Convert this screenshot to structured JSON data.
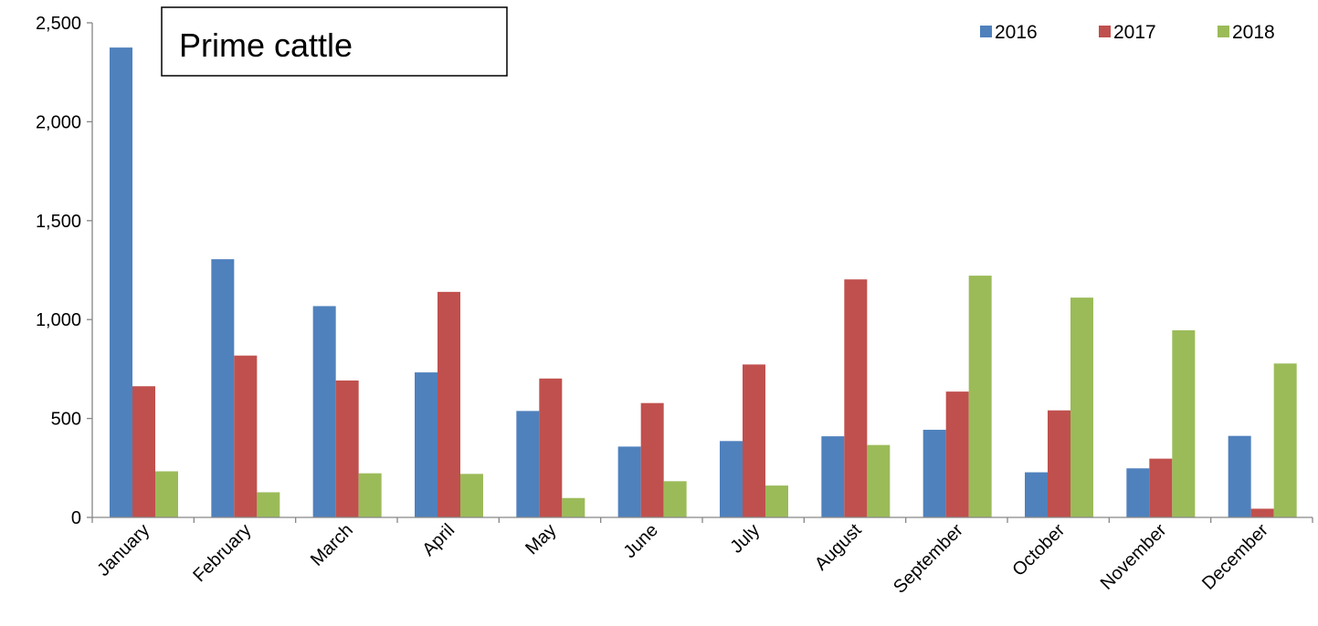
{
  "chart_data": {
    "type": "bar",
    "title": "Prime cattle",
    "categories": [
      "January",
      "February",
      "March",
      "April",
      "May",
      "June",
      "July",
      "August",
      "September",
      "October",
      "November",
      "December"
    ],
    "series": [
      {
        "name": "2016",
        "color": "#4F81BD",
        "values": [
          2375,
          1305,
          1068,
          733,
          538,
          358,
          386,
          410,
          443,
          228,
          248,
          412
        ]
      },
      {
        "name": "2017",
        "color": "#C0504D",
        "values": [
          663,
          818,
          692,
          1140,
          702,
          578,
          773,
          1203,
          636,
          541,
          297,
          44
        ]
      },
      {
        "name": "2018",
        "color": "#9BBB59",
        "values": [
          233,
          127,
          223,
          220,
          98,
          183,
          161,
          366,
          1222,
          1111,
          946,
          778
        ]
      }
    ],
    "ylim": [
      0,
      2500
    ],
    "yticks": [
      0,
      500,
      1000,
      1500,
      2000,
      2500
    ],
    "ytick_labels": [
      "0",
      "500",
      "1,000",
      "1,500",
      "2,000",
      "2,500"
    ],
    "grid": false,
    "legend_position": "top-right"
  }
}
